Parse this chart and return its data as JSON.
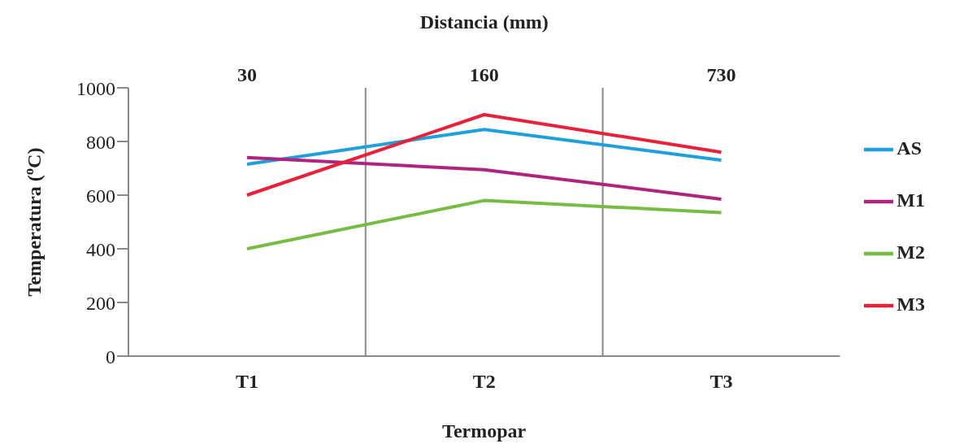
{
  "chart_data": {
    "type": "line",
    "xlabel": "Termopar",
    "x2label": "Distancia (mm)",
    "ylabel": "Temperatura ($^{o}$C)",
    "categories": [
      "T1",
      "T2",
      "T3"
    ],
    "annotations": [
      "30",
      "160",
      "730"
    ],
    "ylim": [
      0,
      1000
    ],
    "yticks": [
      0,
      200,
      400,
      600,
      800,
      1000
    ],
    "grid": "x",
    "legend": "right",
    "marker": "none",
    "line_style": "solid",
    "series": [
      {
        "name": "AS",
        "color": "#1fa0dc",
        "values": [
          715,
          845,
          730
        ]
      },
      {
        "name": "M1",
        "color": "#b0237f",
        "values": [
          740,
          695,
          585
        ]
      },
      {
        "name": "M2",
        "color": "#76bc43",
        "values": [
          400,
          580,
          535
        ]
      },
      {
        "name": "M3",
        "color": "#e8203a",
        "values": [
          600,
          900,
          760
        ]
      }
    ]
  }
}
